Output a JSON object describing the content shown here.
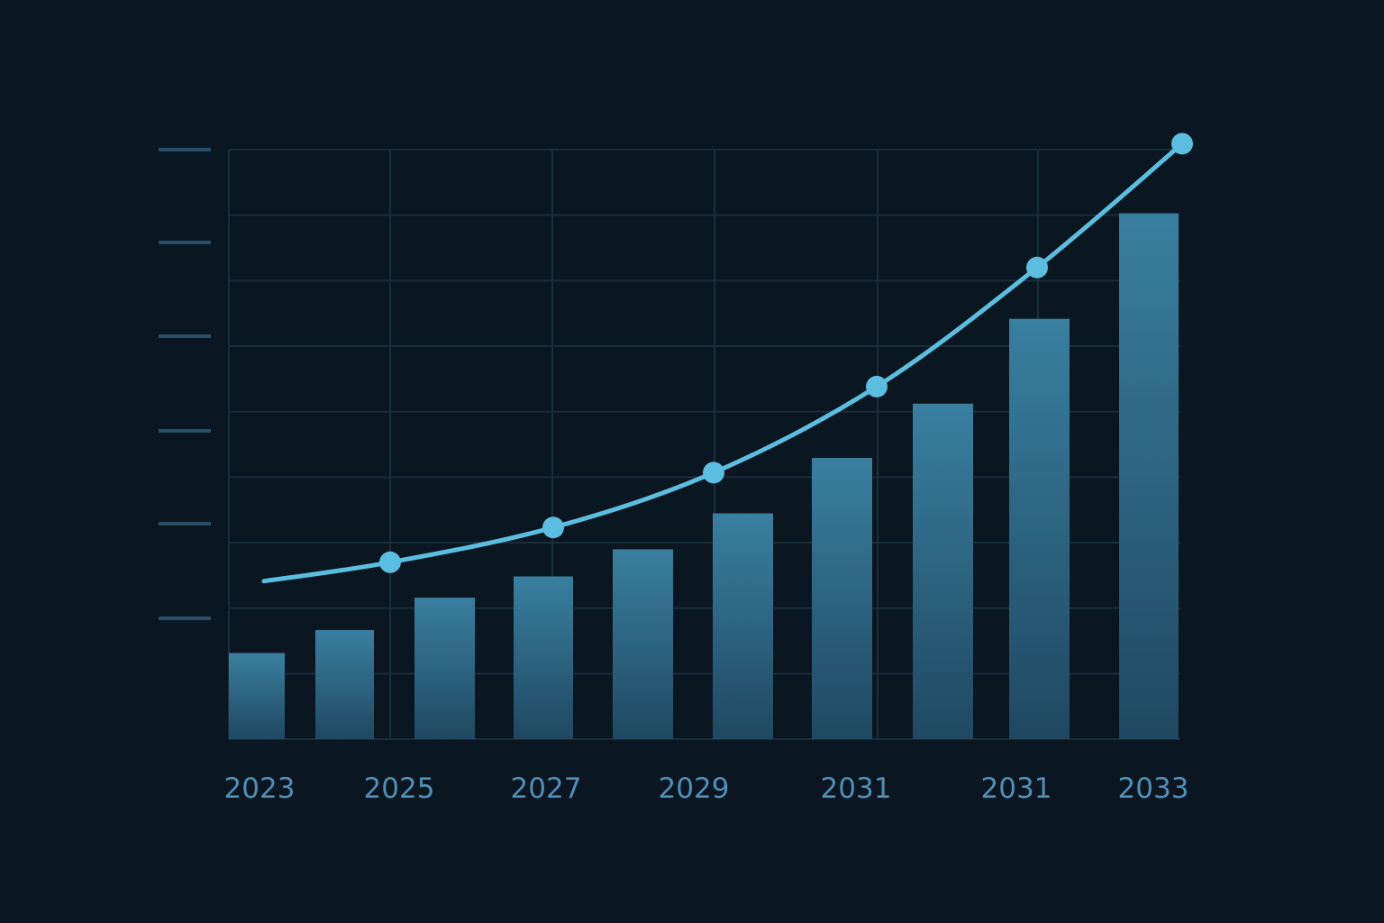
{
  "chart_data": {
    "type": "bar",
    "title": "",
    "xlabel": "",
    "ylabel": "",
    "x_tick_labels": [
      "2023",
      "2025",
      "2027",
      "2029",
      "2031",
      "2031",
      "2033"
    ],
    "ylim": [
      0,
      100
    ],
    "grid": true,
    "legend": "none",
    "bars": {
      "values": [
        14.6,
        18.5,
        24.0,
        27.6,
        32.2,
        38.3,
        47.7,
        56.9,
        71.3,
        89.2
      ]
    },
    "line": {
      "values": [
        26.8,
        30.0,
        35.9,
        45.2,
        59.8,
        80.0,
        101.0
      ]
    },
    "colors": {
      "background": "#0a1620",
      "grid": "#1b2e3b",
      "bar_top": "#3a7fa0",
      "bar_bottom": "#1f4862",
      "line": "#5bbde0",
      "tick_label": "#4f8fb8",
      "axis_tick": "#2a4e66"
    }
  }
}
